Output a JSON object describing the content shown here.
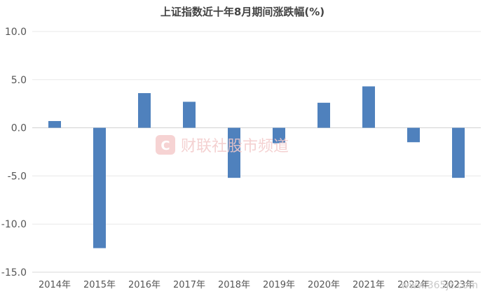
{
  "chart_data": {
    "type": "bar",
    "title": "上证指数近十年8月期间涨跌幅(%)",
    "categories": [
      "2014年",
      "2015年",
      "2016年",
      "2017年",
      "2018年",
      "2019年",
      "2020年",
      "2021年",
      "2022年",
      "2023年"
    ],
    "values": [
      0.7,
      -12.5,
      3.6,
      2.7,
      -5.2,
      -1.6,
      2.6,
      4.3,
      -1.5,
      -5.2
    ],
    "ylim": [
      -15.0,
      10.0
    ],
    "yticks": [
      "10.0",
      "5.0",
      "0.0",
      "-5.0",
      "-10.0",
      "-15.0"
    ],
    "grid": true,
    "legend": "none",
    "bar_color": "#4f81bd"
  },
  "watermark": {
    "text": "财联社股市频道",
    "logo_letter": "C",
    "color": "#f3c9c9"
  },
  "site_watermark": {
    "text": "www.365jz.com"
  }
}
